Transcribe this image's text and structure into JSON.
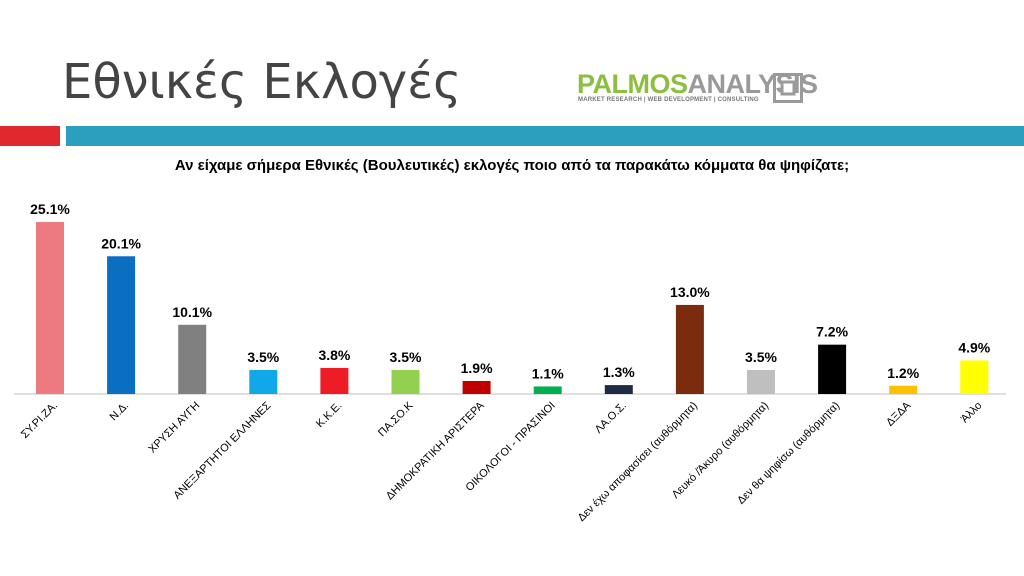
{
  "slide": {
    "title": "Εθνικές Εκλογές",
    "question": "Αν είχαμε σήμερα Εθνικές (Βουλευτικές) εκλογές ποιο από τα παρακάτω κόμματα θα ψηφίζατε;"
  },
  "logo": {
    "part1": "PALMOS",
    "part2": "ANALYSIS",
    "tagline": "MARKET RESEARCH | WEB DEVELOPMENT | CONSULTING"
  },
  "colors": {
    "red_band": "#e0292e",
    "teal_band": "#2aa0be"
  },
  "chart_data": {
    "type": "bar",
    "categories": [
      "ΣΥ.ΡΙ.ΖΑ.",
      "Ν.Δ.",
      "ΧΡΥΣΗ ΑΥΓΗ",
      "ΑΝΕΞΑΡΤΗΤΟΙ ΕΛΛΗΝΕΣ",
      "Κ.Κ.Ε.",
      "ΠΑ.ΣΟ.Κ",
      "ΔΗΜΟΚΡΑΤΙΚΗ ΑΡΙΣΤΕΡΑ",
      "ΟΙΚΟΛΟΓΟΙ - ΠΡΑΣΙΝΟΙ",
      "ΛΑ.Ο.Σ.",
      "Δεν έχω αποφασίσει (αυθόρμητα)",
      "Λευκό /Άκυρο (αυθόρμητα)",
      "Δεν θα ψηφίσω (αυθόρμητα)",
      "ΔΞΔΑ",
      "Άλλο"
    ],
    "values": [
      25.1,
      20.1,
      10.1,
      3.5,
      3.8,
      3.5,
      1.9,
      1.1,
      1.3,
      13.0,
      3.5,
      7.2,
      1.2,
      4.9
    ],
    "value_labels": [
      "25.1%",
      "20.1%",
      "10.1%",
      "3.5%",
      "3.8%",
      "3.5%",
      "1.9%",
      "1.1%",
      "1.3%",
      "13.0%",
      "3.5%",
      "7.2%",
      "1.2%",
      "4.9%"
    ],
    "colors": [
      "#ec7a7f",
      "#0b6fc1",
      "#808080",
      "#10a8e8",
      "#ee1c25",
      "#92d050",
      "#c00000",
      "#00b050",
      "#1f2a44",
      "#7b2c0f",
      "#bfbfbf",
      "#000000",
      "#ffc000",
      "#ffff00"
    ],
    "ylim": [
      0,
      27
    ],
    "grid": false,
    "legend": "none"
  }
}
